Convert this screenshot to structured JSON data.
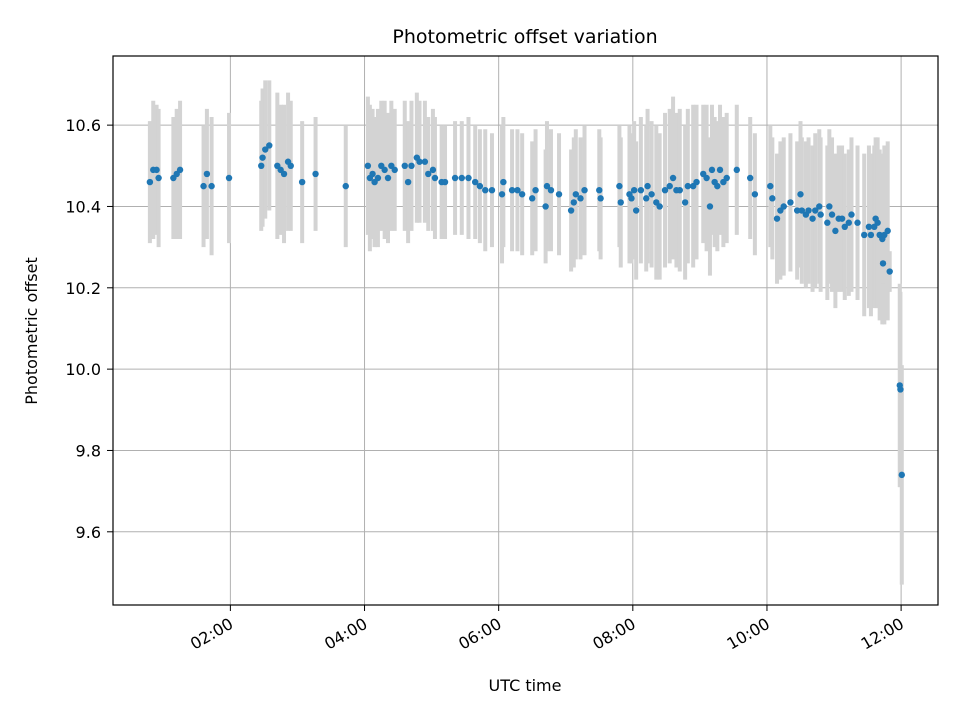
{
  "chart_data": {
    "type": "scatter",
    "title": "Photometric offset variation",
    "xlabel": "UTC time",
    "ylabel": "Photometric offset",
    "grid": true,
    "xlim_hours": [
      0.25,
      12.55
    ],
    "ylim": [
      9.42,
      10.77
    ],
    "x_ticks": [
      {
        "value": 2,
        "label": "02:00"
      },
      {
        "value": 4,
        "label": "04:00"
      },
      {
        "value": 6,
        "label": "06:00"
      },
      {
        "value": 8,
        "label": "08:00"
      },
      {
        "value": 10,
        "label": "10:00"
      },
      {
        "value": 12,
        "label": "12:00"
      }
    ],
    "y_ticks": [
      {
        "value": 9.6,
        "label": "9.6"
      },
      {
        "value": 9.8,
        "label": "9.8"
      },
      {
        "value": 10.0,
        "label": "10.0"
      },
      {
        "value": 10.2,
        "label": "10.2"
      },
      {
        "value": 10.4,
        "label": "10.4"
      },
      {
        "value": 10.6,
        "label": "10.6"
      }
    ],
    "colors": {
      "points": "#1f77b4",
      "errorbars": "#d3d3d3",
      "grid": "#b0b0b0"
    },
    "series": [
      {
        "name": "offset",
        "points": [
          {
            "x": 0.8,
            "y": 10.46,
            "err": 0.15
          },
          {
            "x": 0.85,
            "y": 10.49,
            "err": 0.17
          },
          {
            "x": 0.9,
            "y": 10.49,
            "err": 0.16
          },
          {
            "x": 0.93,
            "y": 10.47,
            "err": 0.17
          },
          {
            "x": 1.15,
            "y": 10.47,
            "err": 0.15
          },
          {
            "x": 1.2,
            "y": 10.48,
            "err": 0.16
          },
          {
            "x": 1.25,
            "y": 10.49,
            "err": 0.17
          },
          {
            "x": 1.6,
            "y": 10.45,
            "err": 0.15
          },
          {
            "x": 1.65,
            "y": 10.48,
            "err": 0.16
          },
          {
            "x": 1.72,
            "y": 10.45,
            "err": 0.17
          },
          {
            "x": 1.98,
            "y": 10.47,
            "err": 0.16
          },
          {
            "x": 2.46,
            "y": 10.5,
            "err": 0.16
          },
          {
            "x": 2.48,
            "y": 10.52,
            "err": 0.17
          },
          {
            "x": 2.52,
            "y": 10.54,
            "err": 0.17
          },
          {
            "x": 2.58,
            "y": 10.55,
            "err": 0.16
          },
          {
            "x": 2.7,
            "y": 10.5,
            "err": 0.18
          },
          {
            "x": 2.75,
            "y": 10.49,
            "err": 0.16
          },
          {
            "x": 2.8,
            "y": 10.48,
            "err": 0.17
          },
          {
            "x": 2.86,
            "y": 10.51,
            "err": 0.17
          },
          {
            "x": 2.9,
            "y": 10.5,
            "err": 0.16
          },
          {
            "x": 3.07,
            "y": 10.46,
            "err": 0.15
          },
          {
            "x": 3.27,
            "y": 10.48,
            "err": 0.14
          },
          {
            "x": 3.72,
            "y": 10.45,
            "err": 0.15
          },
          {
            "x": 4.05,
            "y": 10.5,
            "err": 0.17
          },
          {
            "x": 4.08,
            "y": 10.47,
            "err": 0.18
          },
          {
            "x": 4.12,
            "y": 10.48,
            "err": 0.16
          },
          {
            "x": 4.15,
            "y": 10.46,
            "err": 0.16
          },
          {
            "x": 4.2,
            "y": 10.47,
            "err": 0.17
          },
          {
            "x": 4.25,
            "y": 10.5,
            "err": 0.16
          },
          {
            "x": 4.3,
            "y": 10.49,
            "err": 0.17
          },
          {
            "x": 4.35,
            "y": 10.47,
            "err": 0.16
          },
          {
            "x": 4.4,
            "y": 10.5,
            "err": 0.16
          },
          {
            "x": 4.45,
            "y": 10.49,
            "err": 0.15
          },
          {
            "x": 4.6,
            "y": 10.5,
            "err": 0.16
          },
          {
            "x": 4.65,
            "y": 10.46,
            "err": 0.15
          },
          {
            "x": 4.7,
            "y": 10.5,
            "err": 0.16
          },
          {
            "x": 4.78,
            "y": 10.52,
            "err": 0.16
          },
          {
            "x": 4.82,
            "y": 10.51,
            "err": 0.15
          },
          {
            "x": 4.9,
            "y": 10.51,
            "err": 0.15
          },
          {
            "x": 4.95,
            "y": 10.48,
            "err": 0.14
          },
          {
            "x": 5.02,
            "y": 10.49,
            "err": 0.15
          },
          {
            "x": 5.05,
            "y": 10.47,
            "err": 0.15
          },
          {
            "x": 5.15,
            "y": 10.46,
            "err": 0.14
          },
          {
            "x": 5.2,
            "y": 10.46,
            "err": 0.14
          },
          {
            "x": 5.35,
            "y": 10.47,
            "err": 0.14
          },
          {
            "x": 5.45,
            "y": 10.47,
            "err": 0.14
          },
          {
            "x": 5.55,
            "y": 10.47,
            "err": 0.15
          },
          {
            "x": 5.65,
            "y": 10.46,
            "err": 0.14
          },
          {
            "x": 5.72,
            "y": 10.45,
            "err": 0.14
          },
          {
            "x": 5.8,
            "y": 10.44,
            "err": 0.15
          },
          {
            "x": 5.9,
            "y": 10.44,
            "err": 0.14
          },
          {
            "x": 6.05,
            "y": 10.43,
            "err": 0.17
          },
          {
            "x": 6.07,
            "y": 10.46,
            "err": 0.16
          },
          {
            "x": 6.2,
            "y": 10.44,
            "err": 0.15
          },
          {
            "x": 6.28,
            "y": 10.44,
            "err": 0.15
          },
          {
            "x": 6.35,
            "y": 10.43,
            "err": 0.15
          },
          {
            "x": 6.5,
            "y": 10.42,
            "err": 0.14
          },
          {
            "x": 6.55,
            "y": 10.44,
            "err": 0.15
          },
          {
            "x": 6.7,
            "y": 10.4,
            "err": 0.14
          },
          {
            "x": 6.72,
            "y": 10.45,
            "err": 0.16
          },
          {
            "x": 6.78,
            "y": 10.44,
            "err": 0.15
          },
          {
            "x": 6.9,
            "y": 10.43,
            "err": 0.15
          },
          {
            "x": 7.08,
            "y": 10.39,
            "err": 0.15
          },
          {
            "x": 7.12,
            "y": 10.41,
            "err": 0.16
          },
          {
            "x": 7.15,
            "y": 10.43,
            "err": 0.16
          },
          {
            "x": 7.22,
            "y": 10.42,
            "err": 0.15
          },
          {
            "x": 7.28,
            "y": 10.44,
            "err": 0.16
          },
          {
            "x": 7.5,
            "y": 10.44,
            "err": 0.15
          },
          {
            "x": 7.52,
            "y": 10.42,
            "err": 0.15
          },
          {
            "x": 7.8,
            "y": 10.45,
            "err": 0.15
          },
          {
            "x": 7.82,
            "y": 10.41,
            "err": 0.16
          },
          {
            "x": 7.95,
            "y": 10.43,
            "err": 0.17
          },
          {
            "x": 7.98,
            "y": 10.42,
            "err": 0.16
          },
          {
            "x": 8.02,
            "y": 10.44,
            "err": 0.17
          },
          {
            "x": 8.05,
            "y": 10.39,
            "err": 0.17
          },
          {
            "x": 8.12,
            "y": 10.44,
            "err": 0.18
          },
          {
            "x": 8.2,
            "y": 10.42,
            "err": 0.18
          },
          {
            "x": 8.22,
            "y": 10.45,
            "err": 0.19
          },
          {
            "x": 8.28,
            "y": 10.43,
            "err": 0.18
          },
          {
            "x": 8.35,
            "y": 10.41,
            "err": 0.19
          },
          {
            "x": 8.4,
            "y": 10.4,
            "err": 0.18
          },
          {
            "x": 8.48,
            "y": 10.44,
            "err": 0.19
          },
          {
            "x": 8.55,
            "y": 10.45,
            "err": 0.19
          },
          {
            "x": 8.6,
            "y": 10.47,
            "err": 0.2
          },
          {
            "x": 8.65,
            "y": 10.44,
            "err": 0.19
          },
          {
            "x": 8.7,
            "y": 10.44,
            "err": 0.2
          },
          {
            "x": 8.78,
            "y": 10.41,
            "err": 0.19
          },
          {
            "x": 8.82,
            "y": 10.45,
            "err": 0.19
          },
          {
            "x": 8.9,
            "y": 10.45,
            "err": 0.2
          },
          {
            "x": 8.95,
            "y": 10.46,
            "err": 0.19
          },
          {
            "x": 9.05,
            "y": 10.48,
            "err": 0.17
          },
          {
            "x": 9.1,
            "y": 10.47,
            "err": 0.18
          },
          {
            "x": 9.15,
            "y": 10.4,
            "err": 0.17
          },
          {
            "x": 9.18,
            "y": 10.49,
            "err": 0.16
          },
          {
            "x": 9.22,
            "y": 10.46,
            "err": 0.16
          },
          {
            "x": 9.26,
            "y": 10.45,
            "err": 0.16
          },
          {
            "x": 9.3,
            "y": 10.49,
            "err": 0.16
          },
          {
            "x": 9.35,
            "y": 10.46,
            "err": 0.16
          },
          {
            "x": 9.4,
            "y": 10.47,
            "err": 0.16
          },
          {
            "x": 9.55,
            "y": 10.49,
            "err": 0.16
          },
          {
            "x": 9.75,
            "y": 10.47,
            "err": 0.15
          },
          {
            "x": 9.82,
            "y": 10.43,
            "err": 0.15
          },
          {
            "x": 10.05,
            "y": 10.45,
            "err": 0.15
          },
          {
            "x": 10.08,
            "y": 10.42,
            "err": 0.15
          },
          {
            "x": 10.15,
            "y": 10.37,
            "err": 0.16
          },
          {
            "x": 10.2,
            "y": 10.39,
            "err": 0.17
          },
          {
            "x": 10.25,
            "y": 10.4,
            "err": 0.17
          },
          {
            "x": 10.35,
            "y": 10.41,
            "err": 0.17
          },
          {
            "x": 10.45,
            "y": 10.39,
            "err": 0.17
          },
          {
            "x": 10.5,
            "y": 10.43,
            "err": 0.18
          },
          {
            "x": 10.52,
            "y": 10.39,
            "err": 0.18
          },
          {
            "x": 10.58,
            "y": 10.38,
            "err": 0.18
          },
          {
            "x": 10.62,
            "y": 10.39,
            "err": 0.18
          },
          {
            "x": 10.68,
            "y": 10.37,
            "err": 0.18
          },
          {
            "x": 10.72,
            "y": 10.39,
            "err": 0.19
          },
          {
            "x": 10.78,
            "y": 10.4,
            "err": 0.19
          },
          {
            "x": 10.8,
            "y": 10.38,
            "err": 0.19
          },
          {
            "x": 10.9,
            "y": 10.36,
            "err": 0.19
          },
          {
            "x": 10.93,
            "y": 10.4,
            "err": 0.19
          },
          {
            "x": 10.97,
            "y": 10.38,
            "err": 0.19
          },
          {
            "x": 11.02,
            "y": 10.34,
            "err": 0.19
          },
          {
            "x": 11.07,
            "y": 10.37,
            "err": 0.18
          },
          {
            "x": 11.12,
            "y": 10.37,
            "err": 0.18
          },
          {
            "x": 11.16,
            "y": 10.35,
            "err": 0.18
          },
          {
            "x": 11.22,
            "y": 10.36,
            "err": 0.18
          },
          {
            "x": 11.26,
            "y": 10.38,
            "err": 0.19
          },
          {
            "x": 11.35,
            "y": 10.36,
            "err": 0.19
          },
          {
            "x": 11.45,
            "y": 10.33,
            "err": 0.2
          },
          {
            "x": 11.52,
            "y": 10.35,
            "err": 0.2
          },
          {
            "x": 11.55,
            "y": 10.33,
            "err": 0.2
          },
          {
            "x": 11.6,
            "y": 10.35,
            "err": 0.2
          },
          {
            "x": 11.62,
            "y": 10.37,
            "err": 0.2
          },
          {
            "x": 11.65,
            "y": 10.36,
            "err": 0.21
          },
          {
            "x": 11.68,
            "y": 10.33,
            "err": 0.21
          },
          {
            "x": 11.72,
            "y": 10.32,
            "err": 0.21
          },
          {
            "x": 11.75,
            "y": 10.33,
            "err": 0.22
          },
          {
            "x": 11.8,
            "y": 10.34,
            "err": 0.22
          },
          {
            "x": 11.73,
            "y": 10.26,
            "err": 0.05
          },
          {
            "x": 11.83,
            "y": 10.24,
            "err": 0.05
          },
          {
            "x": 11.98,
            "y": 9.96,
            "err": 0.25
          },
          {
            "x": 11.99,
            "y": 9.95,
            "err": 0.24
          },
          {
            "x": 12.01,
            "y": 9.74,
            "err": 0.27
          }
        ]
      }
    ]
  }
}
